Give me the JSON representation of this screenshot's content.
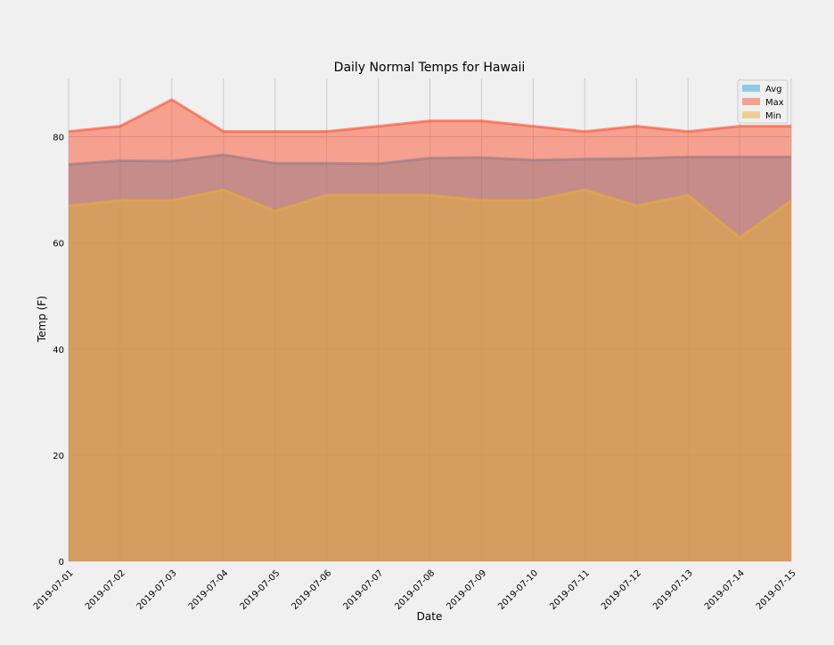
{
  "chart_data": {
    "type": "area",
    "title": "Daily Normal Temps for Hawaii",
    "xlabel": "Date",
    "ylabel": "Temp (F)",
    "categories": [
      "2019-07-01",
      "2019-07-02",
      "2019-07-03",
      "2019-07-04",
      "2019-07-05",
      "2019-07-06",
      "2019-07-07",
      "2019-07-08",
      "2019-07-09",
      "2019-07-10",
      "2019-07-11",
      "2019-07-12",
      "2019-07-13",
      "2019-07-14",
      "2019-07-15"
    ],
    "ylim": [
      0,
      91
    ],
    "yticks": [
      0,
      20,
      40,
      60,
      80
    ],
    "grid": true,
    "legend_position": "top-right",
    "series": [
      {
        "name": "Avg",
        "color": "#30a2da",
        "values": [
          74.8,
          75.5,
          75.4,
          76.6,
          75.0,
          75.0,
          74.9,
          76.0,
          76.1,
          75.6,
          75.8,
          75.9,
          76.2,
          76.2,
          76.2
        ]
      },
      {
        "name": "Max",
        "color": "#fc4f30",
        "values": [
          81.0,
          82.0,
          87.0,
          81.0,
          81.0,
          81.0,
          82.0,
          83.0,
          83.0,
          82.0,
          81.0,
          82.0,
          81.0,
          82.0,
          82.0
        ]
      },
      {
        "name": "Min",
        "color": "#e5ae38",
        "values": [
          67.0,
          68.0,
          68.0,
          70.0,
          66.0,
          69.0,
          69.0,
          69.0,
          68.0,
          68.0,
          70.0,
          67.0,
          69.0,
          61.0,
          68.0
        ]
      }
    ]
  }
}
